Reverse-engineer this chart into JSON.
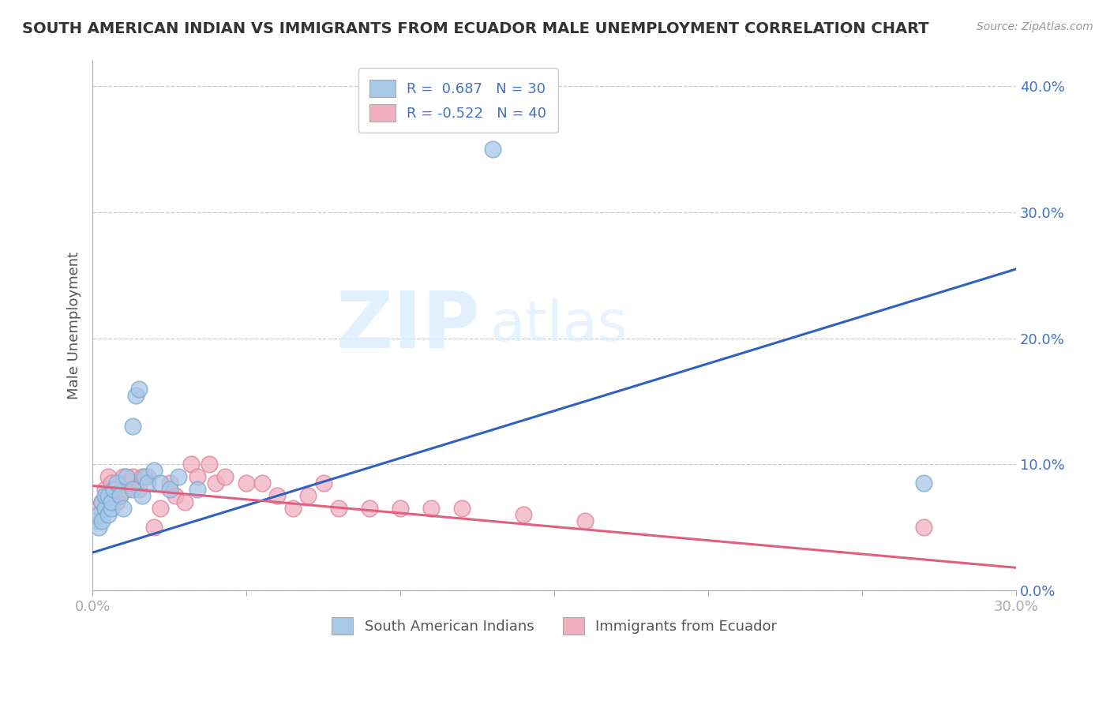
{
  "title": "SOUTH AMERICAN INDIAN VS IMMIGRANTS FROM ECUADOR MALE UNEMPLOYMENT CORRELATION CHART",
  "source": "Source: ZipAtlas.com",
  "ylabel": "Male Unemployment",
  "watermark_zip": "ZIP",
  "watermark_atlas": "atlas",
  "blue_label": "South American Indians",
  "pink_label": "Immigrants from Ecuador",
  "blue_R": 0.687,
  "blue_N": 30,
  "pink_R": -0.522,
  "pink_N": 40,
  "xlim": [
    0.0,
    0.3
  ],
  "ylim": [
    0.0,
    0.42
  ],
  "x_ticks": [
    0.0,
    0.05,
    0.1,
    0.15,
    0.2,
    0.25,
    0.3
  ],
  "y_ticks": [
    0.0,
    0.1,
    0.2,
    0.3,
    0.4
  ],
  "blue_color": "#A8C8E8",
  "blue_edge_color": "#7AAAD0",
  "blue_line_color": "#3060C0",
  "pink_color": "#F0B0C0",
  "pink_edge_color": "#E080A0",
  "pink_line_color": "#E06080",
  "background_color": "#FFFFFF",
  "grid_color": "#CCCCCC",
  "title_color": "#333333",
  "tick_label_color": "#4472C4",
  "legend_text_color": "#4472C4",
  "blue_x": [
    0.001,
    0.002,
    0.002,
    0.003,
    0.003,
    0.004,
    0.004,
    0.005,
    0.005,
    0.006,
    0.006,
    0.007,
    0.008,
    0.009,
    0.01,
    0.011,
    0.013,
    0.013,
    0.014,
    0.015,
    0.016,
    0.017,
    0.018,
    0.02,
    0.022,
    0.025,
    0.028,
    0.034,
    0.13,
    0.27
  ],
  "blue_y": [
    0.055,
    0.05,
    0.06,
    0.055,
    0.07,
    0.065,
    0.075,
    0.06,
    0.075,
    0.065,
    0.07,
    0.08,
    0.085,
    0.075,
    0.065,
    0.09,
    0.08,
    0.13,
    0.155,
    0.16,
    0.075,
    0.09,
    0.085,
    0.095,
    0.085,
    0.08,
    0.09,
    0.08,
    0.35,
    0.085
  ],
  "pink_x": [
    0.002,
    0.003,
    0.004,
    0.005,
    0.005,
    0.006,
    0.007,
    0.008,
    0.009,
    0.01,
    0.011,
    0.012,
    0.013,
    0.015,
    0.016,
    0.018,
    0.02,
    0.022,
    0.025,
    0.027,
    0.03,
    0.032,
    0.034,
    0.038,
    0.04,
    0.043,
    0.05,
    0.055,
    0.06,
    0.065,
    0.07,
    0.075,
    0.08,
    0.09,
    0.1,
    0.11,
    0.12,
    0.14,
    0.16,
    0.27
  ],
  "pink_y": [
    0.065,
    0.07,
    0.08,
    0.075,
    0.09,
    0.085,
    0.08,
    0.07,
    0.075,
    0.09,
    0.08,
    0.085,
    0.09,
    0.08,
    0.09,
    0.09,
    0.05,
    0.065,
    0.085,
    0.075,
    0.07,
    0.1,
    0.09,
    0.1,
    0.085,
    0.09,
    0.085,
    0.085,
    0.075,
    0.065,
    0.075,
    0.085,
    0.065,
    0.065,
    0.065,
    0.065,
    0.065,
    0.06,
    0.055,
    0.05
  ],
  "blue_line_x0": 0.0,
  "blue_line_x1": 0.3,
  "blue_line_y0": 0.03,
  "blue_line_y1": 0.255,
  "pink_line_x0": 0.0,
  "pink_line_x1": 0.3,
  "pink_line_y0": 0.083,
  "pink_line_y1": 0.018
}
